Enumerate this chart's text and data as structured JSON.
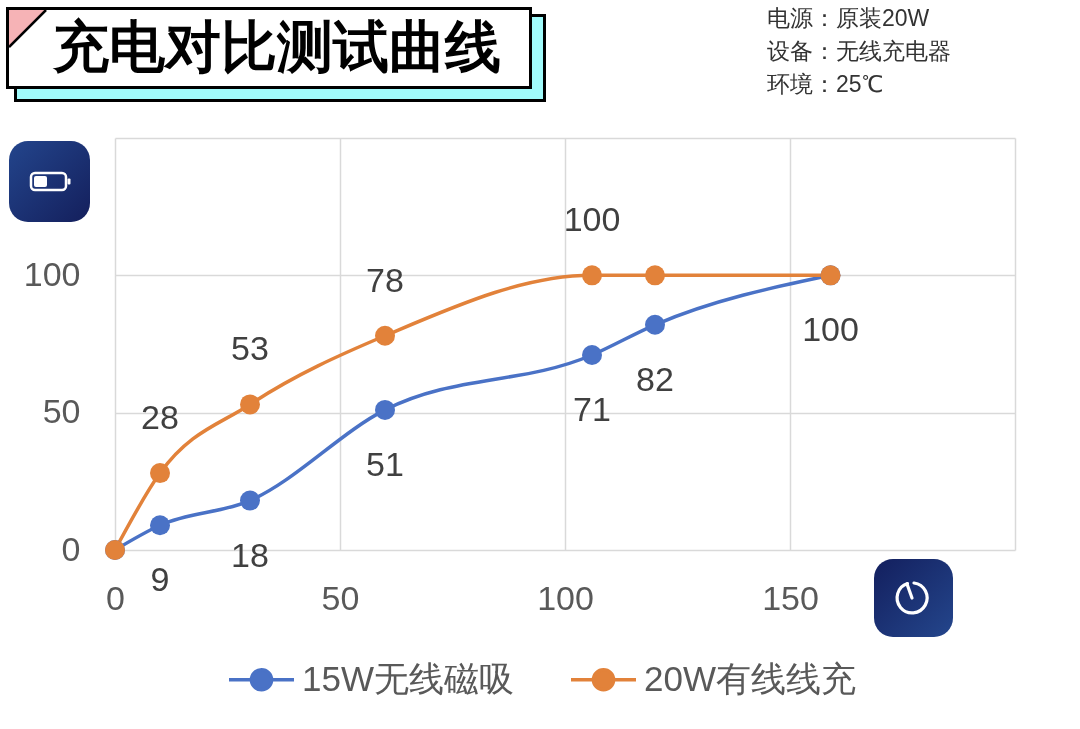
{
  "chart_data": {
    "type": "line",
    "title": "充电对比测试曲线",
    "annotations": [
      "电源：原装20W",
      "设备：无线充电器",
      "环境：25℃"
    ],
    "x": [
      0,
      10,
      30,
      60,
      106,
      120,
      159
    ],
    "series": [
      {
        "name": "15W无线磁吸",
        "color": "#4a72c6",
        "values": [
          0,
          9,
          18,
          51,
          71,
          82,
          100
        ],
        "value_labels": [
          null,
          "9",
          "18",
          "51",
          "71",
          "82",
          "100"
        ]
      },
      {
        "name": "20W有线线充",
        "color": "#e2823a",
        "values": [
          0,
          28,
          53,
          78,
          100,
          100,
          100
        ],
        "value_labels": [
          null,
          "28",
          "53",
          "78",
          "100",
          null,
          null
        ]
      }
    ],
    "xlim": [
      0,
      200
    ],
    "ylim": [
      0,
      150
    ],
    "xticks": [
      0,
      50,
      100,
      150,
      {
        "value": 200,
        "label": null
      }
    ],
    "yticks": [
      0,
      50,
      100,
      {
        "value": 150,
        "label": null
      }
    ],
    "grid": true,
    "legend": "bottom",
    "marker": "circle"
  }
}
